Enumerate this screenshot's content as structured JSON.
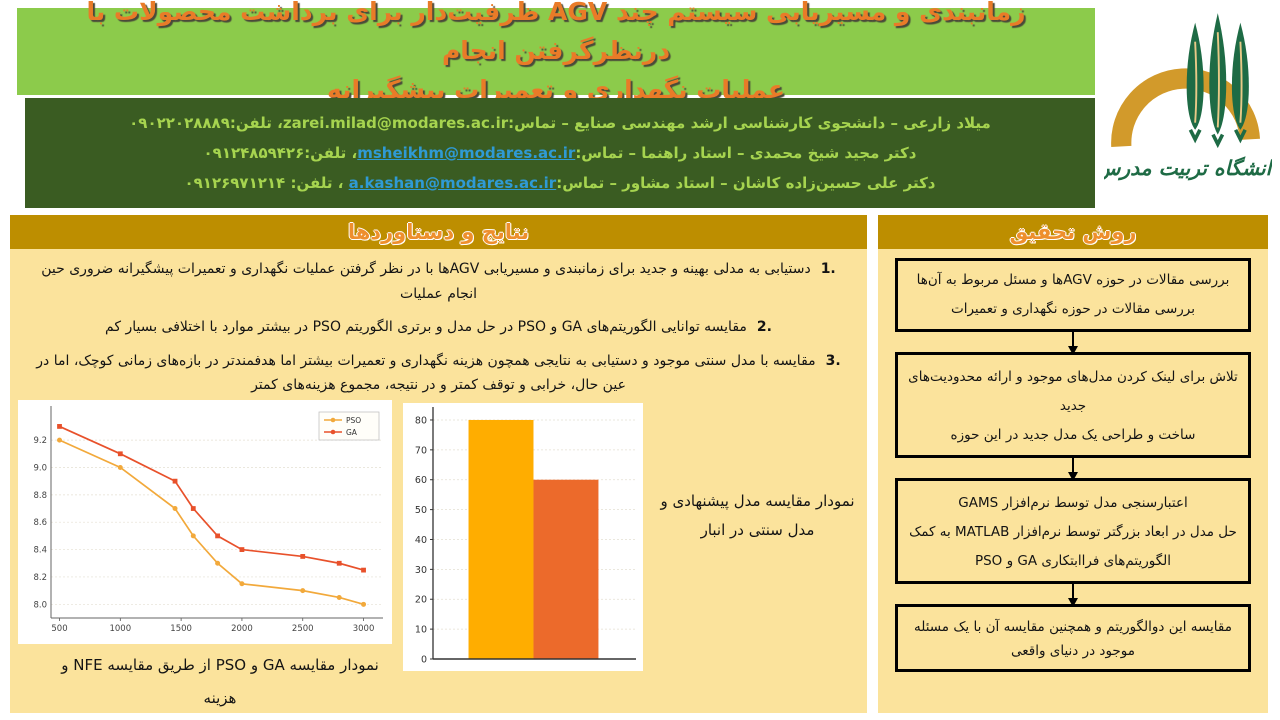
{
  "title": {
    "line1": "زمانبندی و مسیریابی سیستم چند AGV ظرفیت‌دار برای برداشت محصولات با درنظرگرفتن انجام",
    "line2": "عملیات نگهداری و تعمیرات پیشگیرانه"
  },
  "logo": {
    "caption": "دانشگاه تربیت مدرس"
  },
  "authors": [
    {
      "pre": "میلاد زارعی – دانشجوی کارشناسی ارشد مهندسی صنایع – تماس:",
      "email": "zarei.milad@modares.ac.ir",
      "post": "، تلفن:۰۹۰۲۲۰۲۸۸۸۹"
    },
    {
      "pre": "دکتر مجید شیخ محمدی – استاد راهنما – تماس:",
      "email": "msheikhm@modares.ac.ir",
      "post": "، تلفن:۰۹۱۲۴۸۵۹۴۲۶"
    },
    {
      "pre": "دکتر علی حسین‌زاده کاشان – استاد مشاور – تماس:",
      "email": "a.kashan@modares.ac.ir",
      "post": " ، تلفن: ۰۹۱۲۶۹۷۱۲۱۴"
    }
  ],
  "results": {
    "header": "نتایج و دستاوردها",
    "items": [
      {
        "num": "1.",
        "text": "دستیابی به مدلی بهینه و جدید برای زمانبندی و مسیریابی AGVها با در نظر گرفتن عملیات نگهداری و تعمیرات پیشگیرانه ضروری حین انجام عملیات"
      },
      {
        "num": "2.",
        "text": "مقایسه توانایی الگوریتم‌های GA و PSO در حل مدل و برتری الگوریتم PSO در بیشتر موارد با اختلافی بسیار کم"
      },
      {
        "num": "3.",
        "text": "مقایسه با مدل سنتی موجود و دستیابی به نتایجی همچون هزینه نگهداری و تعمیرات بیشتر اما هدفمندتر در بازه‌های زمانی کوچک، اما در عین حال، خرابی و توقف کمتر و در نتیجه، مجموع هزینه‌های کمتر"
      }
    ],
    "line_caption": "نمودار مقایسه GA و PSO از طریق مقایسه NFE و هزینه",
    "bar_caption": "نمودار مقایسه مدل پیشنهادی و مدل سنتی در انبار"
  },
  "method": {
    "header": "روش تحقیق",
    "boxes": [
      {
        "lines": [
          "بررسی مقالات در حوزه AGVها و مسئل مربوط به آن‌ها",
          "بررسی مقالات در حوزه نگهداری و تعمیرات"
        ]
      },
      {
        "lines": [
          "تلاش برای لینک کردن مدل‌های موجود و ارائه محدودیت‌های جدید",
          "ساخت و طراحی یک مدل جدید در این حوزه"
        ]
      },
      {
        "lines": [
          "اعتبارسنجی مدل توسط نرم‌افزار GAMS",
          "حل مدل در ابعاد بزرگتر توسط نرم‌افزار MATLAB به کمک الگوریتم‌های فراابتکاری GA و PSO"
        ]
      },
      {
        "lines": [
          "مقایسه این دوالگوریتم و همچنین مقایسه آن با یک مسئله موجود در دنیای واقعی"
        ]
      }
    ]
  },
  "colors": {
    "band_green": "#8CCB4B",
    "band_dark_green": "#3A5C22",
    "panel_cream": "#FBE39C",
    "header_gold": "#BD8E00",
    "title_orange": "#E97B28",
    "author_green_text": "#A6D44F",
    "link_blue": "#2F9AD5"
  },
  "chart_data": [
    {
      "type": "line",
      "title": "",
      "xlabel": "",
      "ylabel": "",
      "x": [
        500,
        1000,
        1450,
        1600,
        1800,
        2000,
        2500,
        2800,
        3000
      ],
      "series": [
        {
          "name": "PSO",
          "color": "#F2A93B",
          "marker": "circle",
          "values": [
            9.2,
            9.0,
            8.7,
            8.5,
            8.3,
            8.15,
            8.1,
            8.05,
            8.0
          ]
        },
        {
          "name": "GA",
          "color": "#E8512B",
          "marker": "square",
          "values": [
            9.3,
            9.1,
            8.9,
            8.7,
            8.5,
            8.4,
            8.35,
            8.3,
            8.25
          ]
        }
      ],
      "xticks": [
        500,
        1000,
        1500,
        2000,
        2500,
        3000
      ],
      "yticks": [
        8.0,
        8.2,
        8.4,
        8.6,
        8.8,
        9.0,
        9.2
      ],
      "xlim": [
        430,
        3160
      ],
      "ylim": [
        7.9,
        9.42
      ],
      "legend_position": "top-right",
      "grid": true
    },
    {
      "type": "bar",
      "title": "",
      "categories": [
        "",
        ""
      ],
      "values": [
        80,
        60
      ],
      "colors": [
        "#FFAD00",
        "#EC6A2B"
      ],
      "yticks": [
        0,
        10,
        20,
        30,
        40,
        50,
        60,
        70,
        80
      ],
      "ylim": [
        0,
        83
      ],
      "grid": true
    }
  ]
}
